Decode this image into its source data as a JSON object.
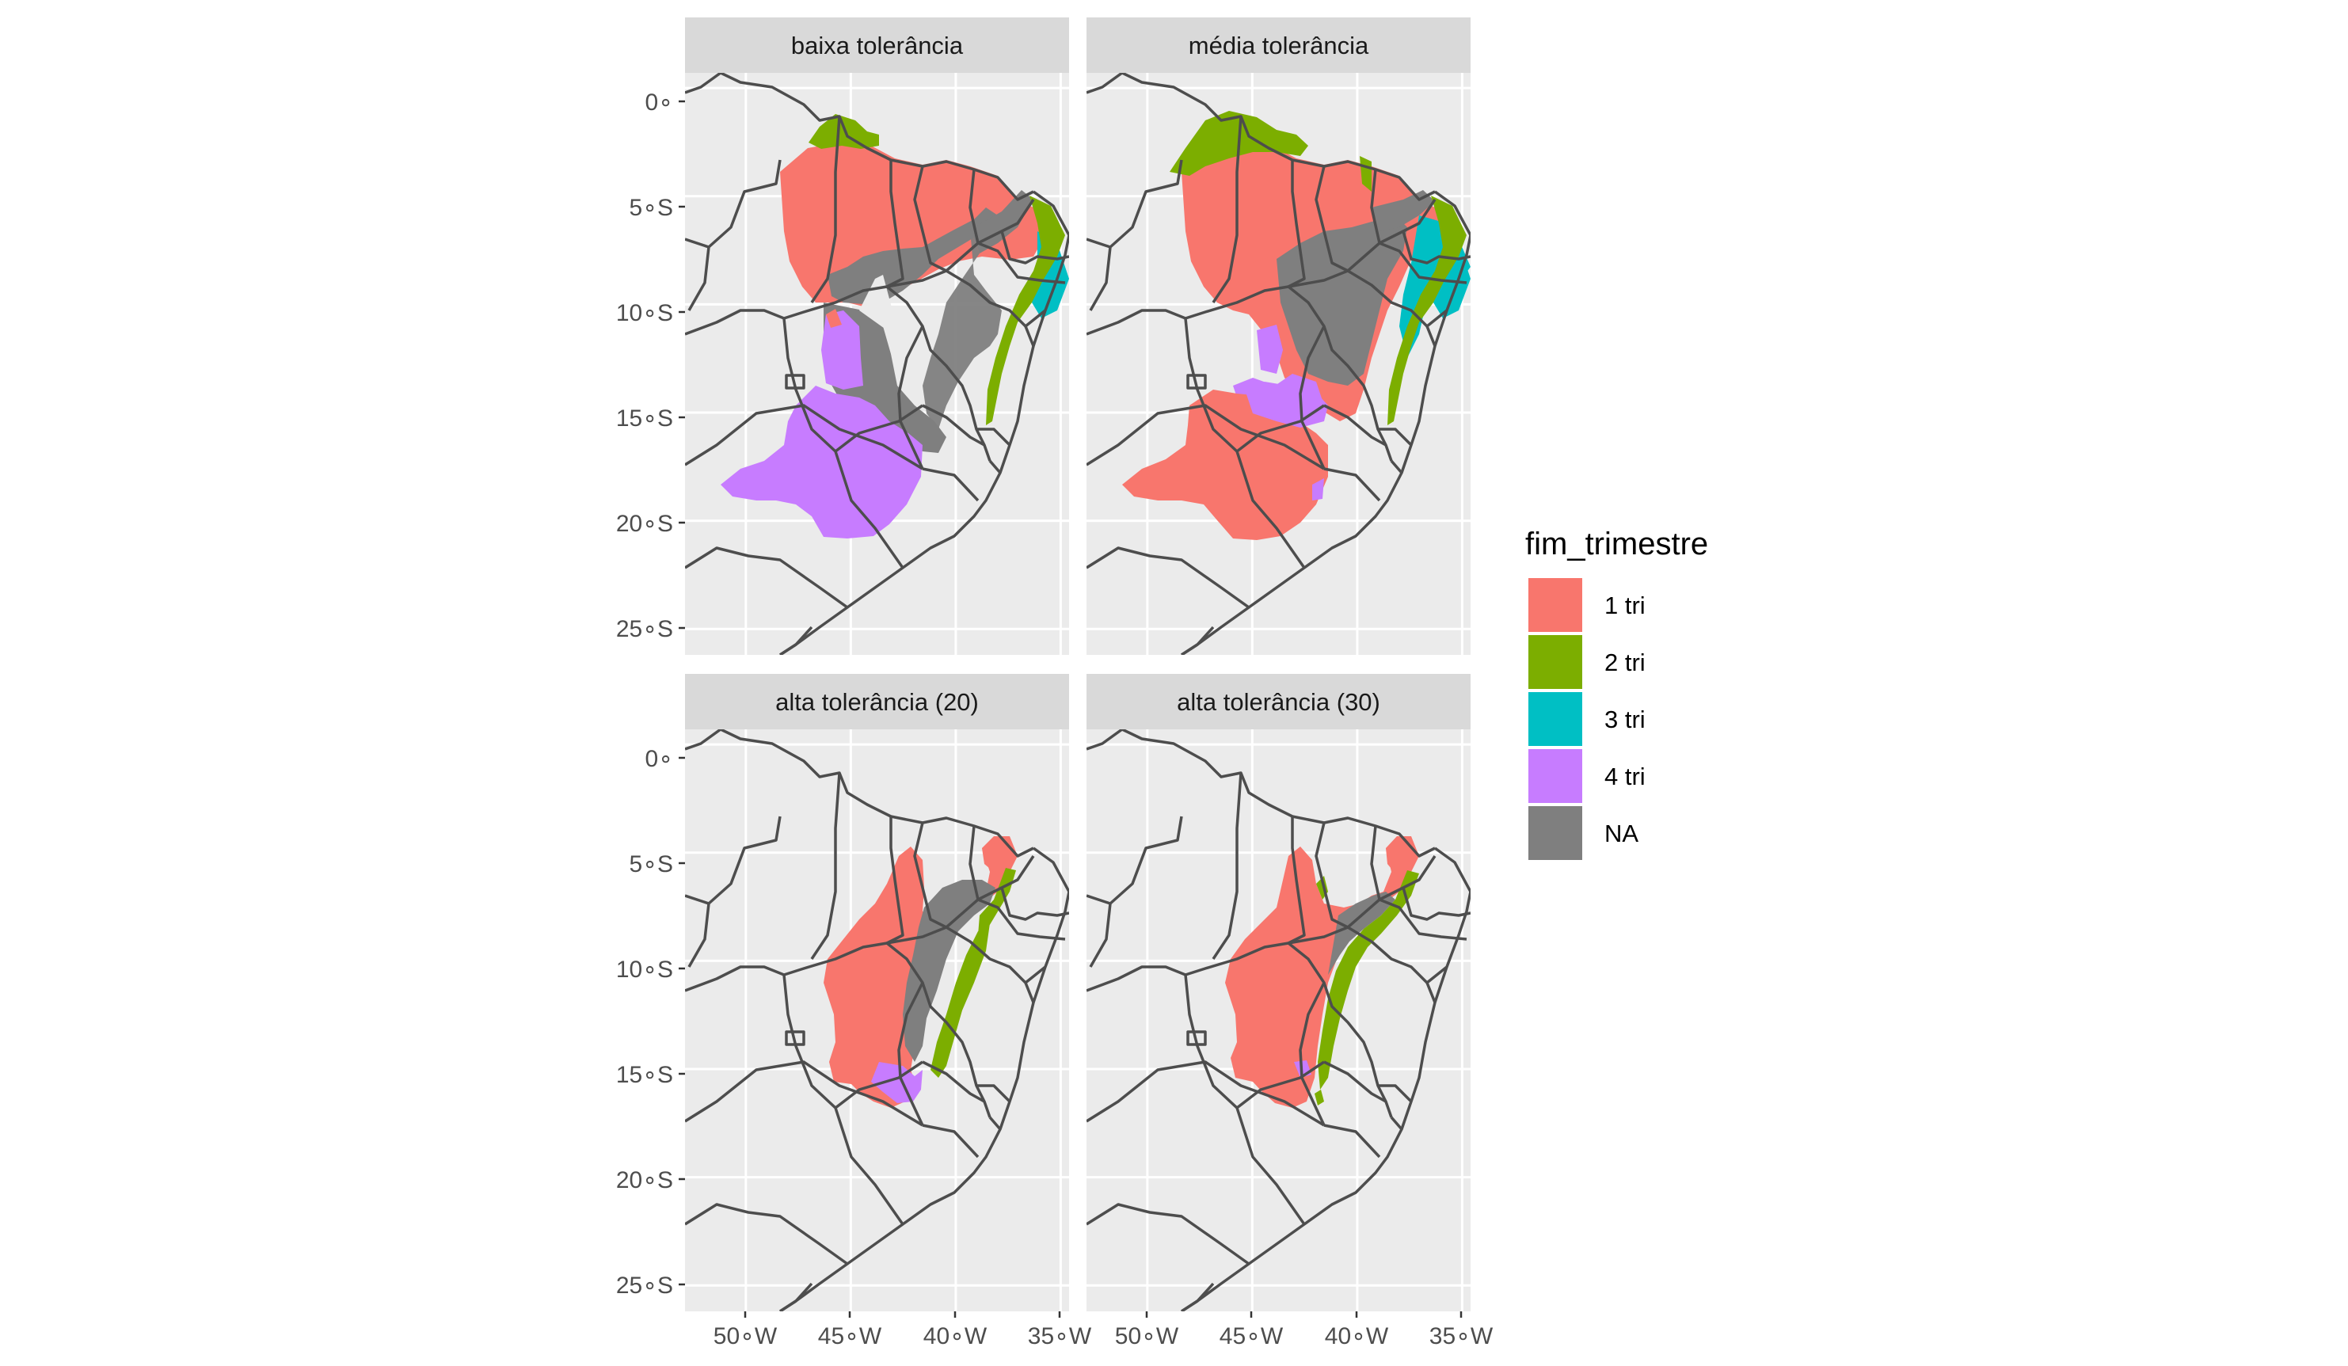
{
  "map": {
    "panels": [
      {
        "title": "baixa tolerância"
      },
      {
        "title": "média tolerância"
      },
      {
        "title": "alta tolerância (20)"
      },
      {
        "title": "alta tolerância (30)"
      }
    ],
    "y_ticks": [
      "0∘",
      "5∘S",
      "10∘S",
      "15∘S",
      "20∘S",
      "25∘S"
    ],
    "x_ticks": [
      "50∘W",
      "45∘W",
      "40∘W",
      "35∘W"
    ],
    "latitude_values": [
      0,
      -5,
      -10,
      -15,
      -20,
      -25
    ],
    "longitude_values": [
      -50,
      -45,
      -40,
      -35
    ],
    "latitude_range": [
      -26.2,
      0.7
    ],
    "longitude_range": [
      -52.9,
      -34.6
    ],
    "legend": {
      "title": "fim_trimestre",
      "items": [
        {
          "label": "1 tri",
          "color": "#F8766D"
        },
        {
          "label": "2 tri",
          "color": "#7CAE00"
        },
        {
          "label": "3 tri",
          "color": "#00BFC4"
        },
        {
          "label": "4 tri",
          "color": "#C77CFF"
        },
        {
          "label": "NA",
          "color": "#7F7F7F"
        }
      ]
    },
    "colors": {
      "panel_background": "#EBEBEB",
      "grid": "#FFFFFF",
      "strip": "#D9D9D9",
      "borders": "#4D4D4D"
    }
  }
}
